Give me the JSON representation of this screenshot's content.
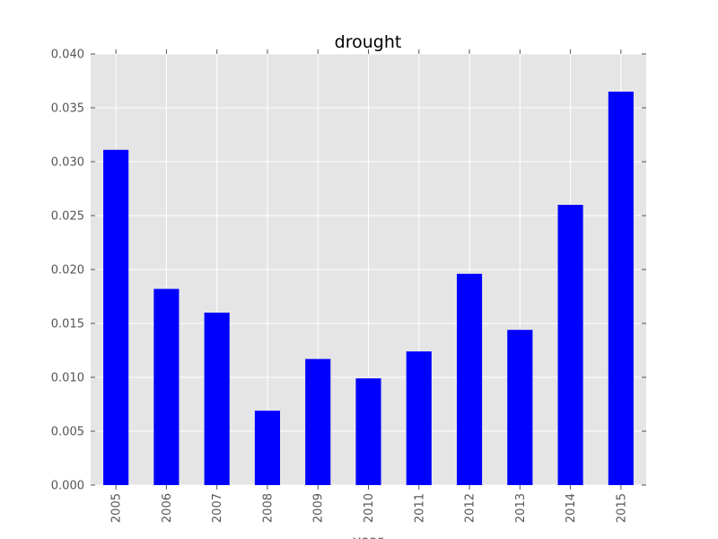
{
  "chart_data": {
    "type": "bar",
    "title": "drought",
    "xlabel": "year",
    "ylabel": "",
    "categories": [
      "2005",
      "2006",
      "2007",
      "2008",
      "2009",
      "2010",
      "2011",
      "2012",
      "2013",
      "2014",
      "2015"
    ],
    "values": [
      0.0311,
      0.0182,
      0.016,
      0.0069,
      0.0117,
      0.0099,
      0.0124,
      0.0196,
      0.0144,
      0.026,
      0.0365
    ],
    "ylim": [
      0,
      0.04
    ],
    "yticks": [
      "0.000",
      "0.005",
      "0.010",
      "0.015",
      "0.020",
      "0.025",
      "0.030",
      "0.035",
      "0.040"
    ],
    "grid": true,
    "legend": "none",
    "colors": {
      "bar": "#0000ff",
      "plot_background": "#e5e5e5",
      "grid": "#ffffff"
    }
  }
}
